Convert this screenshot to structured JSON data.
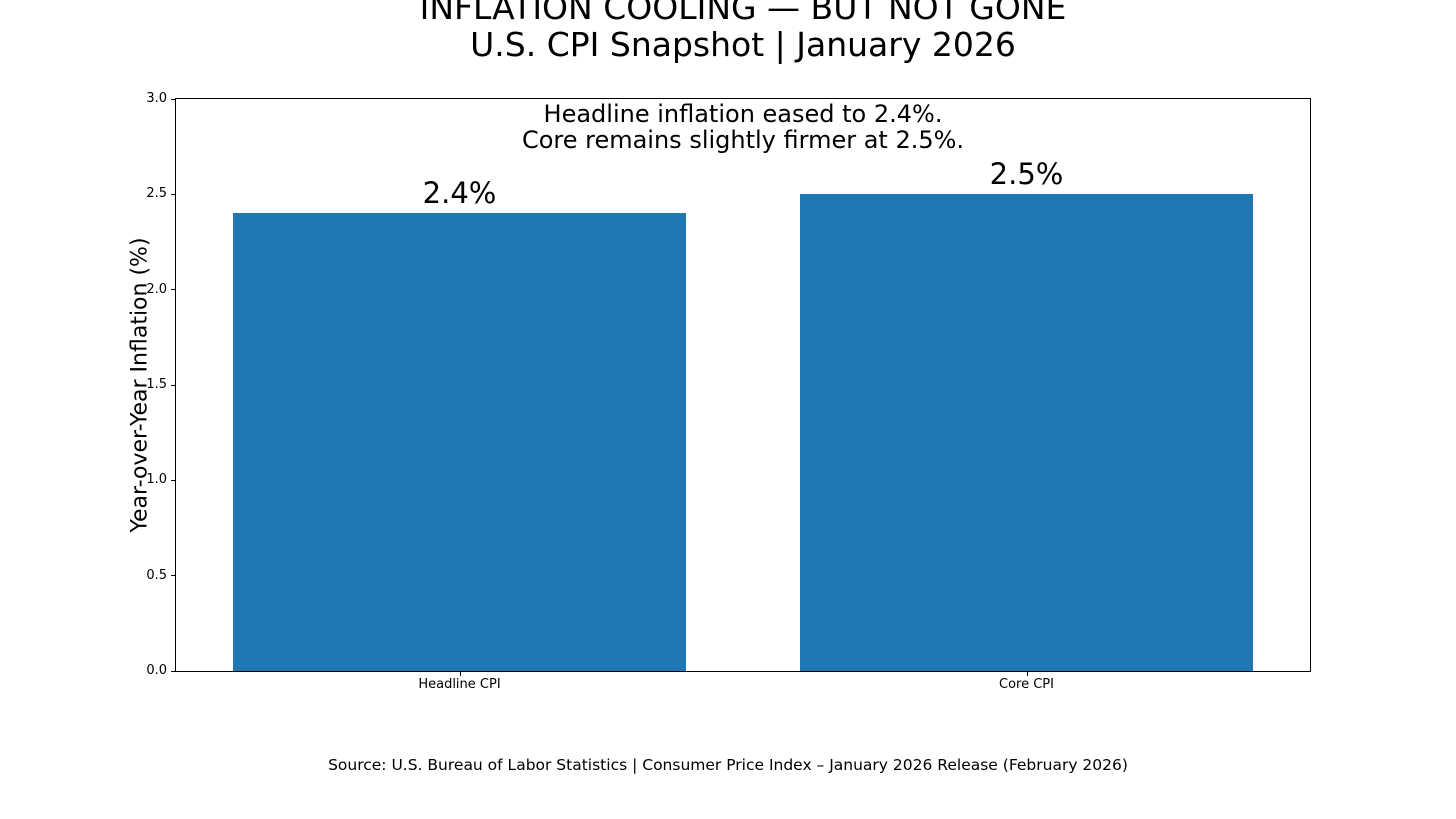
{
  "chart_data": {
    "type": "bar",
    "title_line1": "INFLATION COOLING — BUT NOT GONE",
    "title_line2": "U.S. CPI Snapshot | January 2026",
    "annotation_lines": [
      "Headline inflation eased to 2.4%.",
      "Core remains slightly firmer at 2.5%."
    ],
    "categories": [
      "Headline CPI",
      "Core CPI"
    ],
    "values": [
      2.4,
      2.5
    ],
    "bar_value_labels": [
      "2.4%",
      "2.5%"
    ],
    "bar_color": "#1f77b4",
    "xlabel": "",
    "ylabel": "Year-over-Year Inflation (%)",
    "ylim": [
      0.0,
      3.0
    ],
    "yticks": [
      "0.0",
      "0.5",
      "1.0",
      "1.5",
      "2.0",
      "2.5",
      "3.0"
    ],
    "bar_width_fraction": 0.8,
    "grid": false,
    "legend": "none",
    "source": "Source: U.S. Bureau of Labor Statistics | Consumer Price Index – January 2026 Release (February 2026)"
  }
}
